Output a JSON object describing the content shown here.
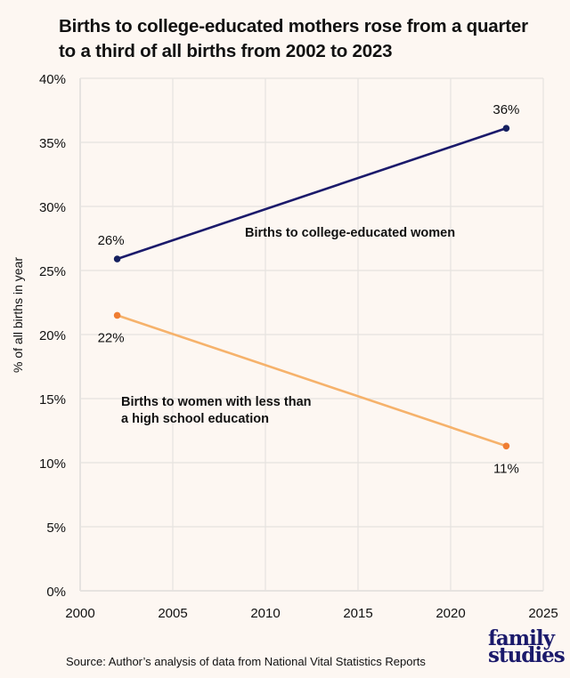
{
  "title_lines": [
    "Births to college-educated mothers rose from a quarter",
    "to a third of all births from 2002 to 2023"
  ],
  "source": "Source: Author’s analysis of data from National Vital Statistics Reports",
  "logo": {
    "line1": "family",
    "line2": "studies"
  },
  "colors": {
    "background": "#fdf7f2",
    "grid": "#e6e3e0",
    "college_line": "#1b1a6b",
    "college_marker": "#15205f",
    "lesshs_line": "#f6b26b",
    "lesshs_marker": "#ef7d32"
  },
  "chart_data": {
    "type": "line",
    "title": "Births to college-educated mothers rose from a quarter to a third of all births from 2002 to 2023",
    "xlabel": "",
    "ylabel": "% of all births in year",
    "xlim": [
      2000,
      2025
    ],
    "ylim": [
      0,
      40
    ],
    "xticks": [
      2000,
      2005,
      2010,
      2015,
      2020,
      2025
    ],
    "xtick_labels": [
      "2000",
      "2005",
      "2010",
      "2015",
      "2020",
      "2025"
    ],
    "yticks": [
      0,
      5,
      10,
      15,
      20,
      25,
      30,
      35,
      40
    ],
    "ytick_labels": [
      "0%",
      "5%",
      "10%",
      "15%",
      "20%",
      "25%",
      "30%",
      "35%",
      "40%"
    ],
    "grid": true,
    "legend": "none (direct labels)",
    "series": [
      {
        "name": "Births to college-educated women",
        "label_lines": [
          "Births to college-educated women"
        ],
        "x": [
          2002,
          2023
        ],
        "values": [
          25.9,
          36.1
        ],
        "data_labels": [
          "26%",
          "36%"
        ],
        "color": "#1b1a6b"
      },
      {
        "name": "Births to women with less than a high school education",
        "label_lines": [
          "Births to women with less than",
          "a high school education"
        ],
        "x": [
          2002,
          2023
        ],
        "values": [
          21.5,
          11.3
        ],
        "data_labels": [
          "22%",
          "11%"
        ],
        "color": "#f6b26b"
      }
    ]
  }
}
